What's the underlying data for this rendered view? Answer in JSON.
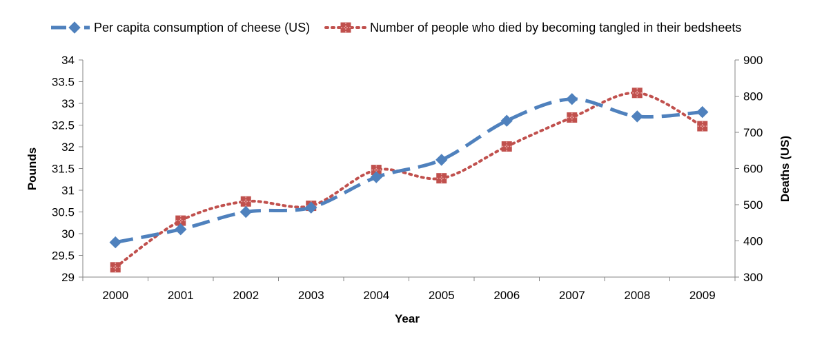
{
  "chart_data": {
    "type": "line",
    "categories": [
      "2000",
      "2001",
      "2002",
      "2003",
      "2004",
      "2005",
      "2006",
      "2007",
      "2008",
      "2009"
    ],
    "xlabel": "Year",
    "ylabel_left": "Pounds",
    "ylabel_right": "Deaths (US)",
    "ylim_left": [
      29,
      34
    ],
    "yticks_left": [
      "29",
      "29.5",
      "30",
      "30.5",
      "31",
      "31.5",
      "32",
      "32.5",
      "33",
      "33.5",
      "34"
    ],
    "ylim_right": [
      300,
      900
    ],
    "yticks_right": [
      "300",
      "400",
      "500",
      "600",
      "700",
      "800",
      "900"
    ],
    "legend_position": "top",
    "grid": false,
    "series": [
      {
        "name": "Per capita consumption of cheese (US)",
        "axis": "left",
        "color": "#4f81bd",
        "marker": "diamond",
        "line_style": "long-dash",
        "smooth": true,
        "values": [
          29.8,
          30.1,
          30.5,
          30.6,
          31.3,
          31.7,
          32.6,
          33.1,
          32.7,
          32.8
        ]
      },
      {
        "name": "Number of people who died by becoming tangled in their bedsheets",
        "axis": "right",
        "color": "#c0504d",
        "marker": "square",
        "line_style": "dotted",
        "smooth": true,
        "values": [
          327,
          456,
          509,
          497,
          596,
          573,
          661,
          741,
          809,
          717
        ]
      }
    ]
  }
}
